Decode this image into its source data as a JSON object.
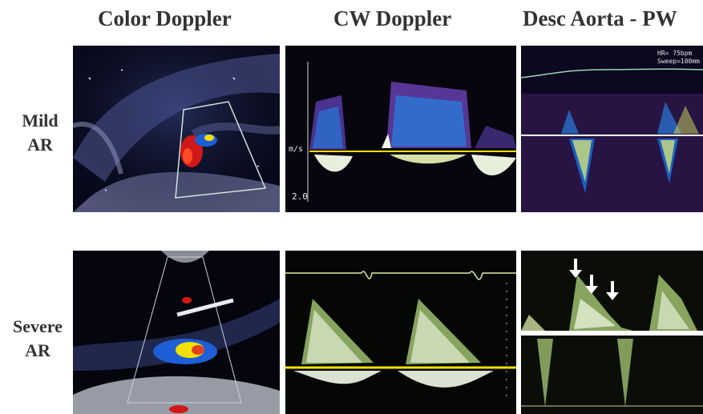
{
  "columns": {
    "color_doppler": "Color Doppler",
    "cw_doppler": "CW Doppler",
    "desc_aorta_pw": "Desc Aorta - PW"
  },
  "rows": {
    "mild": {
      "line1": "Mild",
      "line2": "AR"
    },
    "severe": {
      "line1": "Severe",
      "line2": "AR"
    }
  },
  "panels": {
    "mild_cw": {
      "unit_label": "m/s",
      "scale_label": "2.0"
    },
    "mild_pw": {
      "hr_label": "HR= 75bpm",
      "sweep_label": "Sweep=100mm"
    }
  },
  "colors": {
    "title_text": "#333333",
    "panel_bg": "#06060a",
    "doppler_red": "#d01818",
    "doppler_blue": "#1e5fd8",
    "doppler_yellow": "#f4e000",
    "spectral_white": "#f4fbe8",
    "spectral_green": "#9fbf70"
  }
}
